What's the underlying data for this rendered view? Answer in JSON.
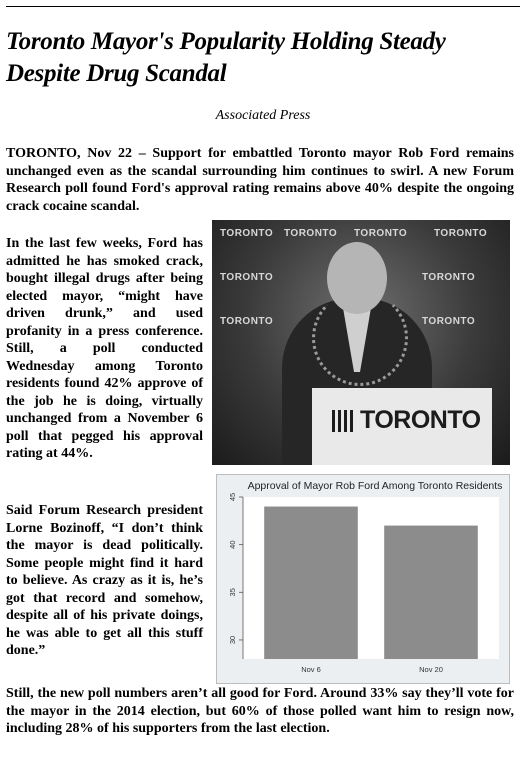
{
  "article": {
    "headline": "Toronto Mayor's Popularity Holding Steady Despite Drug Scandal",
    "byline": "Associated Press",
    "lead": "TORONTO, Nov 22 – Support for embattled Toronto mayor Rob Ford remains unchanged even as the scandal surrounding him continues to swirl. A new Forum Research poll found Ford's approval rating remains above 40% despite the ongoing crack cocaine scandal.",
    "para2": "In the last few weeks, Ford has admitted he has smoked crack, bought illegal drugs after being elected mayor, “might have driven drunk,” and used profanity in a press conference. Still, a poll conducted Wednesday among Toronto residents found 42% approve of the job he is doing, virtually unchanged from a November 6 poll that pegged his approval rating at 44%.",
    "para3": "Said Forum Research president Lorne Bozinoff, “I don’t think the mayor is dead politically. Some people might find it hard to believe. As crazy as it is, he’s got that record and somehow, despite all of his private doings, he was able to get all this stuff done.”",
    "para4": "Still, the new poll numbers aren’t all good for Ford. Around 33% say they’ll vote for the mayor in the 2014 election, but 60% of those polled want him to resign now, including 28% of his supporters from the last election."
  },
  "photo": {
    "backdrop_text": "TORONTO",
    "backdrop_url": "www.toronto.ca",
    "podium_text": "TORONTO"
  },
  "chart_data": {
    "type": "bar",
    "title": "Approval of Mayor Rob Ford Among Toronto Residents",
    "categories": [
      "Nov 6",
      "Nov 20"
    ],
    "values": [
      44,
      42
    ],
    "ylim": [
      28,
      45
    ],
    "yticks": [
      30,
      35,
      40,
      45
    ],
    "xlabel": "",
    "ylabel": "",
    "bar_color": "#8c8c8c",
    "background": "#eceff2",
    "grid": false
  }
}
